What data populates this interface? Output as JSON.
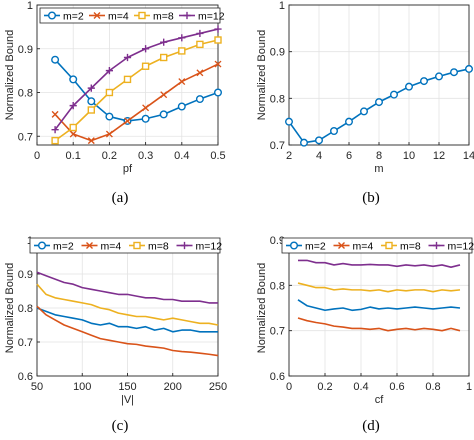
{
  "colors": {
    "m=2": "#0072BD",
    "m=4": "#D95319",
    "m=8": "#EDB120",
    "m=12": "#7E2F8E",
    "single": "#0072BD"
  },
  "chart_data": [
    {
      "type": "line",
      "caption": "(a)",
      "xlabel": "pf",
      "ylabel": "Normalized Bound",
      "xlim": [
        0,
        0.5
      ],
      "ylim": [
        0.68,
        1.0
      ],
      "xticks": [
        0,
        0.1,
        0.2,
        0.3,
        0.4,
        0.5
      ],
      "xtick_labels": [
        "0",
        "0.1",
        "0.2",
        "0.3",
        "0.4",
        "0.5"
      ],
      "yticks": [
        0.7,
        0.8,
        0.9,
        1.0
      ],
      "ytick_labels": [
        "0.7",
        "0.8",
        "0.9",
        "1"
      ],
      "legend": "top-left-outside-row",
      "series": [
        {
          "name": "m=2",
          "marker": "circle",
          "x": [
            0.05,
            0.1,
            0.15,
            0.2,
            0.25,
            0.3,
            0.35,
            0.4,
            0.45,
            0.5
          ],
          "values": [
            0.875,
            0.83,
            0.78,
            0.745,
            0.735,
            0.74,
            0.75,
            0.768,
            0.785,
            0.8
          ]
        },
        {
          "name": "m=4",
          "marker": "x",
          "x": [
            0.05,
            0.1,
            0.15,
            0.2,
            0.25,
            0.3,
            0.35,
            0.4,
            0.45,
            0.5
          ],
          "values": [
            0.75,
            0.705,
            0.69,
            0.705,
            0.735,
            0.765,
            0.795,
            0.825,
            0.845,
            0.865
          ]
        },
        {
          "name": "m=8",
          "marker": "square",
          "x": [
            0.05,
            0.1,
            0.15,
            0.2,
            0.25,
            0.3,
            0.35,
            0.4,
            0.45,
            0.5
          ],
          "values": [
            0.69,
            0.72,
            0.76,
            0.8,
            0.83,
            0.86,
            0.88,
            0.895,
            0.91,
            0.92
          ]
        },
        {
          "name": "m=12",
          "marker": "plus",
          "x": [
            0.05,
            0.1,
            0.15,
            0.2,
            0.25,
            0.3,
            0.35,
            0.4,
            0.45,
            0.5
          ],
          "values": [
            0.715,
            0.77,
            0.81,
            0.85,
            0.88,
            0.9,
            0.915,
            0.925,
            0.935,
            0.945
          ]
        }
      ]
    },
    {
      "type": "line",
      "caption": "(b)",
      "xlabel": "m",
      "ylabel": "Normalized Bound",
      "xlim": [
        2,
        14
      ],
      "ylim": [
        0.7,
        1.0
      ],
      "xticks": [
        2,
        4,
        6,
        8,
        10,
        12,
        14
      ],
      "xtick_labels": [
        "2",
        "4",
        "6",
        "8",
        "10",
        "12",
        "14"
      ],
      "yticks": [
        0.7,
        0.8,
        0.9,
        1.0
      ],
      "ytick_labels": [
        "0.7",
        "0.8",
        "0.9",
        "1"
      ],
      "legend": "none",
      "series": [
        {
          "marker": "circle",
          "x": [
            2,
            3,
            4,
            5,
            6,
            7,
            8,
            9,
            10,
            11,
            12,
            13,
            14
          ],
          "values": [
            0.75,
            0.705,
            0.71,
            0.73,
            0.75,
            0.772,
            0.792,
            0.808,
            0.825,
            0.837,
            0.847,
            0.856,
            0.863
          ]
        }
      ]
    },
    {
      "type": "line",
      "caption": "(c)",
      "xlabel": "|V|",
      "ylabel": "Normalized Bound",
      "xlim": [
        50,
        250
      ],
      "ylim": [
        0.6,
        1.0
      ],
      "xticks": [
        50,
        100,
        150,
        200,
        250
      ],
      "xtick_labels": [
        "50",
        "100",
        "150",
        "200",
        "250"
      ],
      "yticks": [
        0.6,
        0.7,
        0.8,
        0.9,
        1.0
      ],
      "ytick_labels": [
        "0.6",
        "0.7",
        "0.8",
        "0.9",
        "1"
      ],
      "legend": "top-outside-row",
      "series": [
        {
          "name": "m=2",
          "marker": "circle",
          "x": [
            50,
            60,
            70,
            80,
            90,
            100,
            110,
            120,
            130,
            140,
            150,
            160,
            170,
            180,
            190,
            200,
            210,
            220,
            230,
            240,
            250
          ],
          "values": [
            0.8,
            0.79,
            0.78,
            0.775,
            0.77,
            0.765,
            0.755,
            0.75,
            0.755,
            0.745,
            0.745,
            0.74,
            0.745,
            0.735,
            0.74,
            0.73,
            0.735,
            0.735,
            0.73,
            0.73,
            0.73
          ]
        },
        {
          "name": "m=4",
          "marker": "x",
          "x": [
            50,
            60,
            70,
            80,
            90,
            100,
            110,
            120,
            130,
            140,
            150,
            160,
            170,
            180,
            190,
            200,
            210,
            220,
            230,
            240,
            250
          ],
          "values": [
            0.805,
            0.78,
            0.765,
            0.75,
            0.74,
            0.73,
            0.72,
            0.71,
            0.705,
            0.7,
            0.695,
            0.693,
            0.688,
            0.685,
            0.682,
            0.675,
            0.672,
            0.67,
            0.667,
            0.664,
            0.66
          ]
        },
        {
          "name": "m=8",
          "marker": "square",
          "x": [
            50,
            60,
            70,
            80,
            90,
            100,
            110,
            120,
            130,
            140,
            150,
            160,
            170,
            180,
            190,
            200,
            210,
            220,
            230,
            240,
            250
          ],
          "values": [
            0.87,
            0.84,
            0.83,
            0.825,
            0.82,
            0.815,
            0.81,
            0.8,
            0.795,
            0.785,
            0.78,
            0.775,
            0.775,
            0.77,
            0.765,
            0.77,
            0.765,
            0.76,
            0.755,
            0.755,
            0.75
          ]
        },
        {
          "name": "m=12",
          "marker": "plus",
          "x": [
            50,
            60,
            70,
            80,
            90,
            100,
            110,
            120,
            130,
            140,
            150,
            160,
            170,
            180,
            190,
            200,
            210,
            220,
            230,
            240,
            250
          ],
          "values": [
            0.905,
            0.895,
            0.885,
            0.875,
            0.87,
            0.86,
            0.855,
            0.85,
            0.845,
            0.84,
            0.84,
            0.835,
            0.83,
            0.83,
            0.825,
            0.825,
            0.82,
            0.82,
            0.82,
            0.815,
            0.815
          ]
        }
      ]
    },
    {
      "type": "line",
      "caption": "(d)",
      "xlabel": "cf",
      "ylabel": "Normalized Bound",
      "xlim": [
        0,
        1
      ],
      "ylim": [
        0.6,
        0.9
      ],
      "xticks": [
        0,
        0.2,
        0.4,
        0.6,
        0.8,
        1
      ],
      "xtick_labels": [
        "0",
        "0.2",
        "0.4",
        "0.6",
        "0.8",
        "1"
      ],
      "yticks": [
        0.6,
        0.7,
        0.8,
        0.9
      ],
      "ytick_labels": [
        "0.6",
        "0.7",
        "0.8",
        "0.9"
      ],
      "legend": "top-outside-row",
      "series": [
        {
          "name": "m=2",
          "marker": "circle",
          "x": [
            0.05,
            0.1,
            0.15,
            0.2,
            0.25,
            0.3,
            0.35,
            0.4,
            0.45,
            0.5,
            0.55,
            0.6,
            0.65,
            0.7,
            0.75,
            0.8,
            0.85,
            0.9,
            0.95
          ],
          "values": [
            0.768,
            0.755,
            0.75,
            0.745,
            0.748,
            0.75,
            0.745,
            0.747,
            0.752,
            0.748,
            0.75,
            0.748,
            0.75,
            0.752,
            0.75,
            0.748,
            0.75,
            0.752,
            0.75
          ]
        },
        {
          "name": "m=4",
          "marker": "x",
          "x": [
            0.05,
            0.1,
            0.15,
            0.2,
            0.25,
            0.3,
            0.35,
            0.4,
            0.45,
            0.5,
            0.55,
            0.6,
            0.65,
            0.7,
            0.75,
            0.8,
            0.85,
            0.9,
            0.95
          ],
          "values": [
            0.728,
            0.722,
            0.718,
            0.715,
            0.71,
            0.708,
            0.705,
            0.705,
            0.703,
            0.705,
            0.7,
            0.703,
            0.705,
            0.702,
            0.705,
            0.703,
            0.7,
            0.705,
            0.7
          ]
        },
        {
          "name": "m=8",
          "marker": "square",
          "x": [
            0.05,
            0.1,
            0.15,
            0.2,
            0.25,
            0.3,
            0.35,
            0.4,
            0.45,
            0.5,
            0.55,
            0.6,
            0.65,
            0.7,
            0.75,
            0.8,
            0.85,
            0.9,
            0.95
          ],
          "values": [
            0.805,
            0.8,
            0.795,
            0.795,
            0.79,
            0.792,
            0.79,
            0.79,
            0.788,
            0.79,
            0.786,
            0.79,
            0.788,
            0.79,
            0.79,
            0.786,
            0.79,
            0.788,
            0.79
          ]
        },
        {
          "name": "m=12",
          "marker": "plus",
          "x": [
            0.05,
            0.1,
            0.15,
            0.2,
            0.25,
            0.3,
            0.35,
            0.4,
            0.45,
            0.5,
            0.55,
            0.6,
            0.65,
            0.7,
            0.75,
            0.8,
            0.85,
            0.9,
            0.95
          ],
          "values": [
            0.855,
            0.855,
            0.85,
            0.85,
            0.845,
            0.848,
            0.845,
            0.845,
            0.846,
            0.845,
            0.845,
            0.842,
            0.845,
            0.843,
            0.845,
            0.842,
            0.845,
            0.84,
            0.845
          ]
        }
      ]
    }
  ]
}
